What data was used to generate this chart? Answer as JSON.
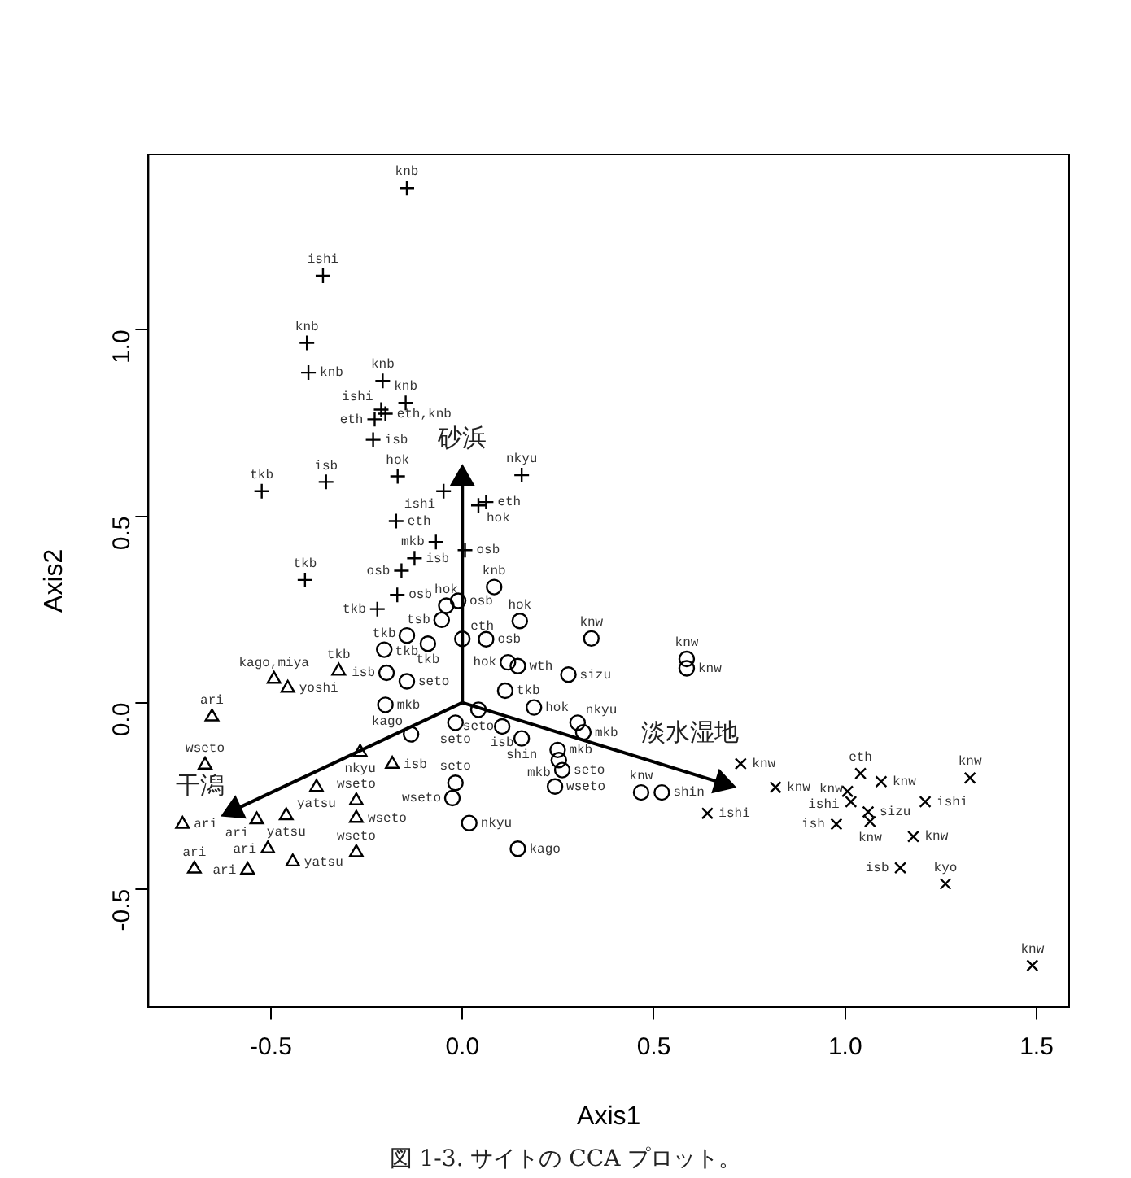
{
  "chart_data": {
    "type": "scatter",
    "xlabel": "Axis1",
    "ylabel": "Axis2",
    "xlim": [
      -0.82,
      1.585
    ],
    "ylim": [
      -0.816,
      1.47
    ],
    "xticks": [
      -0.5,
      {
        "value": 0,
        "label": "0.0"
      },
      0.5,
      {
        "value": 1,
        "label": "1.0"
      },
      1.5
    ],
    "yticks": [
      -0.5,
      {
        "value": 0,
        "label": "0.0"
      },
      0.5,
      {
        "value": 1,
        "label": "1.0"
      }
    ],
    "annotations": [
      "図 1-3. サイトの CCA プロット。"
    ],
    "series": [
      {
        "marker": "plus",
        "color": "#000000",
        "x": [
          -0.145,
          -0.364,
          -0.406,
          -0.402,
          -0.208,
          -0.148,
          -0.212,
          -0.229,
          -0.201,
          -0.233,
          -0.169,
          -0.356,
          -0.524,
          0.155,
          -0.049,
          0.062,
          0.042,
          -0.173,
          -0.069,
          0.007,
          -0.125,
          -0.159,
          -0.17,
          -0.222,
          -0.411
        ],
        "values": [
          1.38,
          1.145,
          0.965,
          0.885,
          0.863,
          0.804,
          0.786,
          0.76,
          0.775,
          0.705,
          0.607,
          0.592,
          0.567,
          0.61,
          0.567,
          0.538,
          0.529,
          0.487,
          0.431,
          0.409,
          0.387,
          0.354,
          0.289,
          0.251,
          0.329
        ],
        "value_labels": [
          "knb",
          "ishi",
          "knb",
          "knb",
          "knb",
          "knb",
          "ishi",
          "eth",
          "eth,knb",
          "isb",
          "hok",
          "isb",
          "tkb",
          "nkyu",
          "ishi",
          "eth",
          "hok",
          "eth",
          "mkb",
          "osb",
          "isb",
          "osb",
          "osb",
          "tkb",
          "tkb"
        ]
      },
      {
        "marker": "circle",
        "color": "#000000",
        "x": [
          0.083,
          -0.042,
          -0.011,
          -0.054,
          0.15,
          -0.145,
          -0.09,
          0.0,
          0.062,
          0.337,
          -0.204,
          0.119,
          0.145,
          0.277,
          0.586,
          0.586,
          -0.198,
          -0.145,
          0.112,
          -0.201,
          0.187,
          0.042,
          -0.018,
          0.104,
          0.301,
          0.316,
          -0.134,
          0.155,
          0.249,
          0.252,
          0.261,
          0.242,
          -0.018,
          -0.026,
          0.018,
          0.145,
          0.467,
          0.521
        ],
        "values": [
          0.31,
          0.26,
          0.273,
          0.222,
          0.219,
          0.18,
          0.158,
          0.171,
          0.17,
          0.172,
          0.142,
          0.108,
          0.098,
          0.075,
          0.117,
          0.092,
          0.08,
          0.057,
          0.032,
          -0.006,
          -0.013,
          -0.019,
          -0.054,
          -0.064,
          -0.054,
          -0.08,
          -0.085,
          -0.096,
          -0.127,
          -0.154,
          -0.181,
          -0.225,
          -0.215,
          -0.256,
          -0.323,
          -0.392,
          -0.241,
          -0.241
        ],
        "value_labels": [
          "knb",
          "hok",
          "osb",
          "tsb",
          "hok",
          "tkb",
          "tkb",
          "eth",
          "osb",
          "knw",
          "tkb",
          "hok",
          "wth",
          "sizu",
          "knw",
          "knw",
          "isb",
          "seto",
          "tkb",
          "mkb",
          "hok",
          "seto",
          "seto",
          "isb",
          "nkyu",
          "mkb",
          "kago",
          "shin",
          "mkb",
          "mkb",
          "seto",
          "wseto",
          "seto",
          "wseto",
          "nkyu",
          "kago",
          "knw",
          "shin"
        ]
      },
      {
        "marker": "triangle",
        "color": "#000000",
        "x": [
          -0.492,
          -0.456,
          -0.323,
          -0.654,
          -0.267,
          -0.183,
          -0.672,
          -0.381,
          -0.277,
          -0.277,
          -0.537,
          -0.46,
          -0.731,
          -0.508,
          -0.443,
          -0.277,
          -0.7,
          -0.561
        ],
        "values": [
          0.063,
          0.039,
          0.085,
          -0.038,
          -0.133,
          -0.165,
          -0.167,
          -0.227,
          -0.263,
          -0.31,
          -0.314,
          -0.303,
          -0.326,
          -0.392,
          -0.427,
          -0.402,
          -0.446,
          -0.449
        ],
        "value_labels": [
          "kago,miya",
          "yoshi",
          "tkb",
          "ari",
          "nkyu",
          "isb",
          "wseto",
          "yatsu",
          "wseto",
          "wseto",
          "ari",
          "yatsu",
          "ari",
          "ari",
          "yatsu",
          "wseto",
          "ari",
          "ari"
        ]
      },
      {
        "marker": "cross",
        "color": "#000000",
        "x": [
          0.727,
          0.818,
          0.64,
          1.04,
          1.094,
          1.006,
          1.015,
          1.06,
          1.065,
          0.977,
          1.326,
          1.209,
          1.178,
          1.144,
          1.262,
          1.489
        ],
        "values": [
          -0.164,
          -0.227,
          -0.297,
          -0.19,
          -0.212,
          -0.238,
          -0.266,
          -0.293,
          -0.319,
          -0.326,
          -0.202,
          -0.266,
          -0.359,
          -0.443,
          -0.486,
          -0.705
        ],
        "value_labels": [
          "knw",
          "knw",
          "ishi",
          "eth",
          "knw",
          "ishi",
          "knw",
          "sizu",
          "knw",
          "ish",
          "knw",
          "ishi",
          "knw",
          "isb",
          "kyo",
          "knw"
        ]
      },
      {
        "type": "line",
        "marker": "triangle",
        "name": "砂浜",
        "color": "#000000",
        "x": [
          0,
          0
        ],
        "values": [
          0,
          0.6
        ]
      },
      {
        "type": "line",
        "marker": "triangle",
        "name": "淡水湿地",
        "color": "#000000",
        "x": [
          0,
          0.679
        ],
        "values": [
          0,
          -0.216
        ]
      },
      {
        "type": "line",
        "marker": "triangle",
        "name": "干潟",
        "color": "#000000",
        "x": [
          0,
          -0.596
        ],
        "values": [
          0,
          -0.288
        ]
      }
    ]
  }
}
